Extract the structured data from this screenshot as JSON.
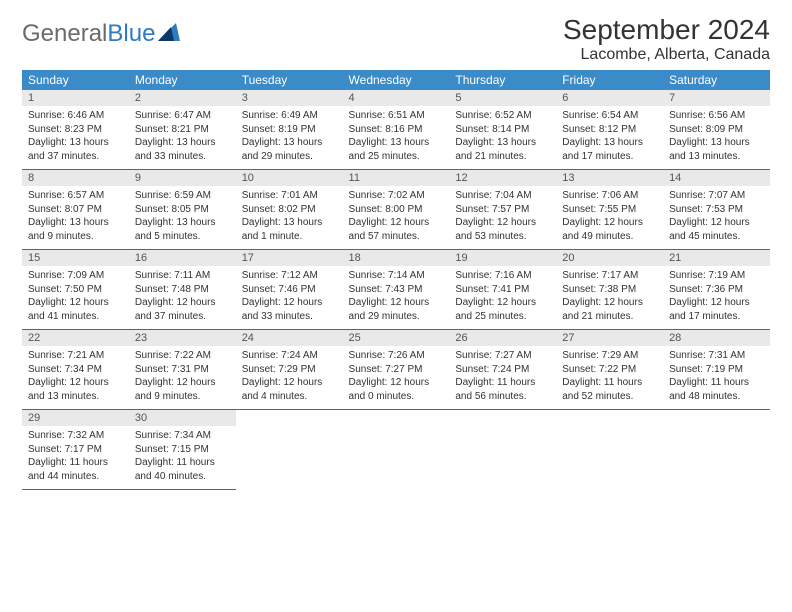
{
  "brand": {
    "part1": "General",
    "part2": "Blue"
  },
  "title": "September 2024",
  "location": "Lacombe, Alberta, Canada",
  "colors": {
    "header_bg": "#3b8bc8",
    "header_text": "#ffffff",
    "daynum_bg": "#e9e9e9",
    "border": "#2f6fa3",
    "body_text": "#333333",
    "logo_gray": "#6b6b6b",
    "logo_blue": "#2f7bbf"
  },
  "daynames": [
    "Sunday",
    "Monday",
    "Tuesday",
    "Wednesday",
    "Thursday",
    "Friday",
    "Saturday"
  ],
  "weeks": [
    [
      {
        "n": "1",
        "sr": "Sunrise: 6:46 AM",
        "ss": "Sunset: 8:23 PM",
        "d1": "Daylight: 13 hours",
        "d2": "and 37 minutes."
      },
      {
        "n": "2",
        "sr": "Sunrise: 6:47 AM",
        "ss": "Sunset: 8:21 PM",
        "d1": "Daylight: 13 hours",
        "d2": "and 33 minutes."
      },
      {
        "n": "3",
        "sr": "Sunrise: 6:49 AM",
        "ss": "Sunset: 8:19 PM",
        "d1": "Daylight: 13 hours",
        "d2": "and 29 minutes."
      },
      {
        "n": "4",
        "sr": "Sunrise: 6:51 AM",
        "ss": "Sunset: 8:16 PM",
        "d1": "Daylight: 13 hours",
        "d2": "and 25 minutes."
      },
      {
        "n": "5",
        "sr": "Sunrise: 6:52 AM",
        "ss": "Sunset: 8:14 PM",
        "d1": "Daylight: 13 hours",
        "d2": "and 21 minutes."
      },
      {
        "n": "6",
        "sr": "Sunrise: 6:54 AM",
        "ss": "Sunset: 8:12 PM",
        "d1": "Daylight: 13 hours",
        "d2": "and 17 minutes."
      },
      {
        "n": "7",
        "sr": "Sunrise: 6:56 AM",
        "ss": "Sunset: 8:09 PM",
        "d1": "Daylight: 13 hours",
        "d2": "and 13 minutes."
      }
    ],
    [
      {
        "n": "8",
        "sr": "Sunrise: 6:57 AM",
        "ss": "Sunset: 8:07 PM",
        "d1": "Daylight: 13 hours",
        "d2": "and 9 minutes."
      },
      {
        "n": "9",
        "sr": "Sunrise: 6:59 AM",
        "ss": "Sunset: 8:05 PM",
        "d1": "Daylight: 13 hours",
        "d2": "and 5 minutes."
      },
      {
        "n": "10",
        "sr": "Sunrise: 7:01 AM",
        "ss": "Sunset: 8:02 PM",
        "d1": "Daylight: 13 hours",
        "d2": "and 1 minute."
      },
      {
        "n": "11",
        "sr": "Sunrise: 7:02 AM",
        "ss": "Sunset: 8:00 PM",
        "d1": "Daylight: 12 hours",
        "d2": "and 57 minutes."
      },
      {
        "n": "12",
        "sr": "Sunrise: 7:04 AM",
        "ss": "Sunset: 7:57 PM",
        "d1": "Daylight: 12 hours",
        "d2": "and 53 minutes."
      },
      {
        "n": "13",
        "sr": "Sunrise: 7:06 AM",
        "ss": "Sunset: 7:55 PM",
        "d1": "Daylight: 12 hours",
        "d2": "and 49 minutes."
      },
      {
        "n": "14",
        "sr": "Sunrise: 7:07 AM",
        "ss": "Sunset: 7:53 PM",
        "d1": "Daylight: 12 hours",
        "d2": "and 45 minutes."
      }
    ],
    [
      {
        "n": "15",
        "sr": "Sunrise: 7:09 AM",
        "ss": "Sunset: 7:50 PM",
        "d1": "Daylight: 12 hours",
        "d2": "and 41 minutes."
      },
      {
        "n": "16",
        "sr": "Sunrise: 7:11 AM",
        "ss": "Sunset: 7:48 PM",
        "d1": "Daylight: 12 hours",
        "d2": "and 37 minutes."
      },
      {
        "n": "17",
        "sr": "Sunrise: 7:12 AM",
        "ss": "Sunset: 7:46 PM",
        "d1": "Daylight: 12 hours",
        "d2": "and 33 minutes."
      },
      {
        "n": "18",
        "sr": "Sunrise: 7:14 AM",
        "ss": "Sunset: 7:43 PM",
        "d1": "Daylight: 12 hours",
        "d2": "and 29 minutes."
      },
      {
        "n": "19",
        "sr": "Sunrise: 7:16 AM",
        "ss": "Sunset: 7:41 PM",
        "d1": "Daylight: 12 hours",
        "d2": "and 25 minutes."
      },
      {
        "n": "20",
        "sr": "Sunrise: 7:17 AM",
        "ss": "Sunset: 7:38 PM",
        "d1": "Daylight: 12 hours",
        "d2": "and 21 minutes."
      },
      {
        "n": "21",
        "sr": "Sunrise: 7:19 AM",
        "ss": "Sunset: 7:36 PM",
        "d1": "Daylight: 12 hours",
        "d2": "and 17 minutes."
      }
    ],
    [
      {
        "n": "22",
        "sr": "Sunrise: 7:21 AM",
        "ss": "Sunset: 7:34 PM",
        "d1": "Daylight: 12 hours",
        "d2": "and 13 minutes."
      },
      {
        "n": "23",
        "sr": "Sunrise: 7:22 AM",
        "ss": "Sunset: 7:31 PM",
        "d1": "Daylight: 12 hours",
        "d2": "and 9 minutes."
      },
      {
        "n": "24",
        "sr": "Sunrise: 7:24 AM",
        "ss": "Sunset: 7:29 PM",
        "d1": "Daylight: 12 hours",
        "d2": "and 4 minutes."
      },
      {
        "n": "25",
        "sr": "Sunrise: 7:26 AM",
        "ss": "Sunset: 7:27 PM",
        "d1": "Daylight: 12 hours",
        "d2": "and 0 minutes."
      },
      {
        "n": "26",
        "sr": "Sunrise: 7:27 AM",
        "ss": "Sunset: 7:24 PM",
        "d1": "Daylight: 11 hours",
        "d2": "and 56 minutes."
      },
      {
        "n": "27",
        "sr": "Sunrise: 7:29 AM",
        "ss": "Sunset: 7:22 PM",
        "d1": "Daylight: 11 hours",
        "d2": "and 52 minutes."
      },
      {
        "n": "28",
        "sr": "Sunrise: 7:31 AM",
        "ss": "Sunset: 7:19 PM",
        "d1": "Daylight: 11 hours",
        "d2": "and 48 minutes."
      }
    ],
    [
      {
        "n": "29",
        "sr": "Sunrise: 7:32 AM",
        "ss": "Sunset: 7:17 PM",
        "d1": "Daylight: 11 hours",
        "d2": "and 44 minutes."
      },
      {
        "n": "30",
        "sr": "Sunrise: 7:34 AM",
        "ss": "Sunset: 7:15 PM",
        "d1": "Daylight: 11 hours",
        "d2": "and 40 minutes."
      },
      null,
      null,
      null,
      null,
      null
    ]
  ]
}
